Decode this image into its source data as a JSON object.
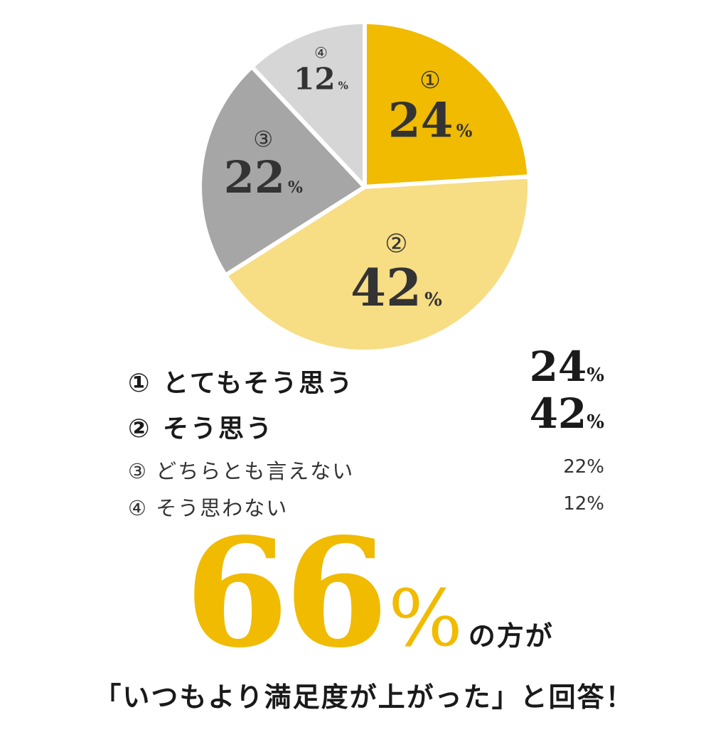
{
  "chart_data": {
    "type": "pie",
    "slices": [
      {
        "marker": "①",
        "value": 24,
        "value_text": "24",
        "color": "#f0bb00"
      },
      {
        "marker": "②",
        "value": 42,
        "value_text": "42",
        "color": "#f7dd84"
      },
      {
        "marker": "③",
        "value": 22,
        "value_text": "22",
        "color": "#a6a6a6"
      },
      {
        "marker": "④",
        "value": 12,
        "value_text": "12",
        "color": "#d6d6d6"
      }
    ],
    "percent_sign": "%"
  },
  "legend": {
    "items": [
      {
        "label": "① とてもそう思う",
        "value": "24",
        "unit": "%"
      },
      {
        "label": "② そう思う",
        "value": "42",
        "unit": "%"
      },
      {
        "label": "③ どちらとも言えない",
        "value": "22%"
      },
      {
        "label": "④ そう思わない",
        "value": "12%"
      }
    ]
  },
  "headline": {
    "value": "66",
    "unit": "%",
    "suffix": "の方が",
    "caption": "「いつもより満足度が上がった」と回答！"
  },
  "colors": {
    "accent": "#f0bb00"
  }
}
